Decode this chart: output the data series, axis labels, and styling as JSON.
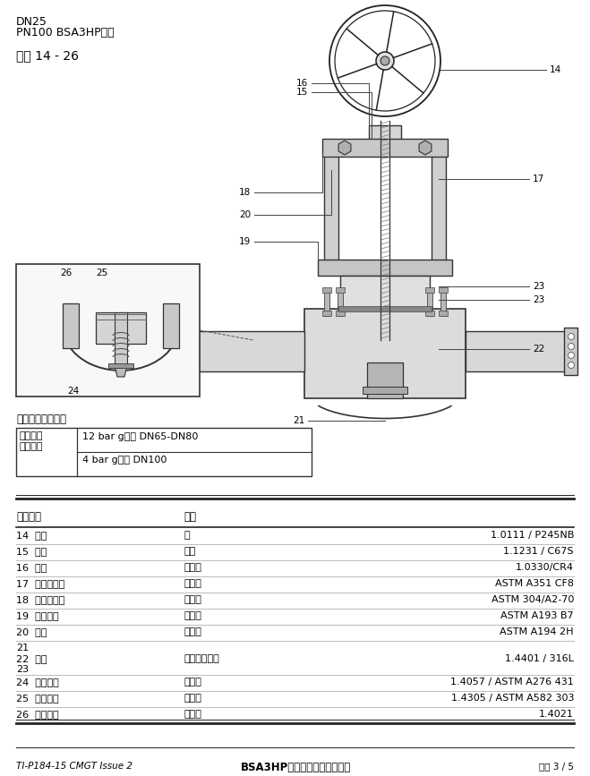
{
  "title_line1": "DN25",
  "title_line2": "PN100 BSA3HP图示",
  "title_line3": "部件 14 - 26",
  "table_header": [
    "序号部件",
    "材质",
    ""
  ],
  "table_rows": [
    [
      "14  手轮",
      "钔",
      "1.0111 / P245NB"
    ],
    [
      "15  卡黄",
      "碳钔",
      "1.1231 / C67S"
    ],
    [
      "16  塔头",
      "低碳钔",
      "1.0330/CR4"
    ],
    [
      "17  阀杆连接器",
      "不锈钔",
      "ASTM A351 CF8"
    ],
    [
      "18  内六角螺丝",
      "不锈钔",
      "ASTM 304/A2-70"
    ],
    [
      "19  双头螺柱",
      "合金钔",
      "ASTM A193 B7"
    ],
    [
      "20  螺母",
      "合金钔",
      "ASTM A194 2H"
    ],
    [
      "21\n22  庞片\n23",
      "石墨和不锈钔",
      "1.4401 / 316L"
    ],
    [
      "24  阀杆塔头",
      "不锈钔",
      "1.4057 / ASTM A276 431"
    ],
    [
      "25  止动螺母",
      "不锈钔",
      "1.4305 / ASTM A582 303"
    ],
    [
      "26  平衡阀芯",
      "不锈钔",
      "1.4021"
    ]
  ],
  "optional_title": "可选平衡阀芯组件",
  "optional_left": "超过此范\n围时选用",
  "optional_right1": "12 bar g压差 DN65-DN80",
  "optional_right2": "4 bar g压差 DN100",
  "footer_left": "TI-P184-15 CMGT Issue 2",
  "footer_center": "BSA3HP波纹管密封高压截止阀",
  "footer_right": "页码 3 / 5",
  "bg_color": "#ffffff",
  "text_color": "#000000",
  "line_color": "#000000"
}
